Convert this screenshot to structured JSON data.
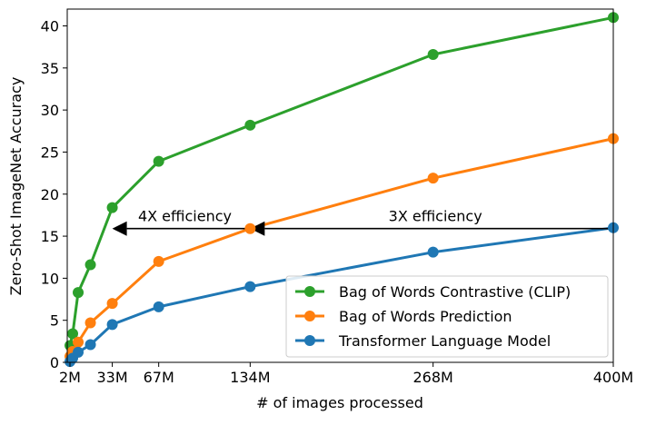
{
  "chart_data": {
    "type": "line",
    "xlabel": "# of images processed",
    "ylabel": "Zero-Shot ImageNet Accuracy",
    "xlim": [
      0,
      400
    ],
    "ylim": [
      0,
      42
    ],
    "x_ticks": [
      {
        "value": 2,
        "label": "2M"
      },
      {
        "value": 33,
        "label": "33M"
      },
      {
        "value": 67,
        "label": "67M"
      },
      {
        "value": 134,
        "label": "134M"
      },
      {
        "value": 268,
        "label": "268M"
      },
      {
        "value": 400,
        "label": "400M"
      }
    ],
    "y_ticks": [
      0,
      5,
      10,
      15,
      20,
      25,
      30,
      35,
      40
    ],
    "legend_position": "lower-right",
    "series": [
      {
        "name": "Bag of Words Contrastive (CLIP)",
        "color": "#2ca02c",
        "x": [
          2,
          4,
          8,
          17,
          33,
          67,
          134,
          268,
          400
        ],
        "y": [
          2.0,
          3.4,
          8.3,
          11.6,
          18.4,
          23.9,
          28.2,
          36.6,
          41.0
        ]
      },
      {
        "name": "Bag of Words Prediction",
        "color": "#ff7f0e",
        "x": [
          2,
          4,
          8,
          17,
          33,
          67,
          134,
          268,
          400
        ],
        "y": [
          0.7,
          1.3,
          2.4,
          4.7,
          7.0,
          12.0,
          15.9,
          21.9,
          26.6
        ]
      },
      {
        "name": "Transformer Language Model",
        "color": "#1f77b4",
        "x": [
          2,
          4,
          8,
          17,
          33,
          67,
          134,
          268,
          400
        ],
        "y": [
          0.1,
          0.5,
          1.2,
          2.1,
          4.5,
          6.6,
          9.0,
          13.1,
          16.0
        ]
      }
    ],
    "annotations": [
      {
        "text": "4X efficiency",
        "from": [
          134,
          15.9
        ],
        "to": [
          33,
          15.9
        ]
      },
      {
        "text": "3X efficiency",
        "from": [
          400,
          15.9
        ],
        "to": [
          134,
          15.9
        ]
      }
    ]
  }
}
